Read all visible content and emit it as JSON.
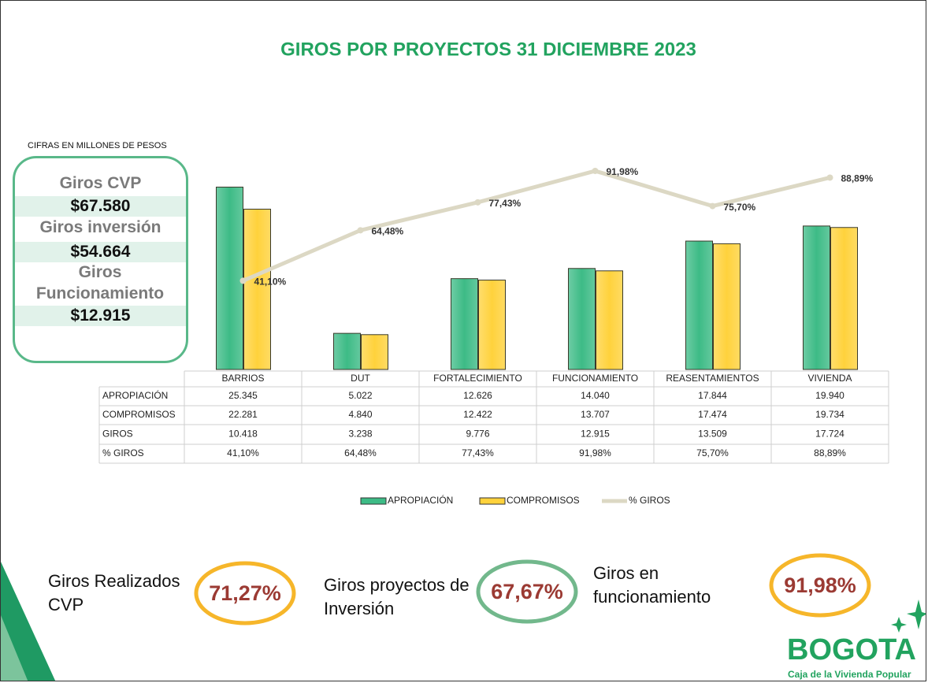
{
  "title": "GIROS POR PROYECTOS 31 DICIEMBRE 2023",
  "note": "CIFRAS EN MILLONES DE PESOS",
  "summary": [
    {
      "label": "Giros  CVP",
      "value": "$67.580"
    },
    {
      "label": "Giros inversión",
      "value": "$54.664"
    },
    {
      "label": "Giros Funcionamiento",
      "value": "$12.915"
    }
  ],
  "chart_data": {
    "type": "bar",
    "categories": [
      "BARRIOS",
      "DUT",
      "FORTALECIMIENTO",
      "FUNCIONAMIENTO",
      "REASENTAMIENTOS",
      "VIVIENDA"
    ],
    "ylim": [
      0,
      30000
    ],
    "y2lim": [
      0,
      100
    ],
    "series": [
      {
        "name": "APROPIACIÓN",
        "color": "#3dbb86",
        "values": [
          25345,
          5022,
          12626,
          14040,
          17844,
          19940
        ],
        "value_labels": [
          "25.345",
          "5.022",
          "12.626",
          "14.040",
          "17.844",
          "19.940"
        ]
      },
      {
        "name": "COMPROMISOS",
        "color": "#ffd23c",
        "values": [
          22281,
          4840,
          12422,
          13707,
          17474,
          19734
        ],
        "value_labels": [
          "22.281",
          "4.840",
          "12.422",
          "13.707",
          "17.474",
          "19.734"
        ]
      },
      {
        "name": "% GIROS",
        "type": "line",
        "axis": "y2",
        "color": "#dcd8c4",
        "values": [
          41.1,
          64.48,
          77.43,
          91.98,
          75.7,
          88.89
        ],
        "value_labels": [
          "41,10%",
          "64,48%",
          "77,43%",
          "91,98%",
          "75,70%",
          "88,89%"
        ]
      }
    ],
    "giros_row": {
      "name": "GIROS",
      "cells": [
        "10.418",
        "3.238",
        "9.776",
        "12.915",
        "13.509",
        "17.724"
      ]
    }
  },
  "indicators": [
    {
      "label": "Giros Realizados CVP",
      "value": "71,27%",
      "color": "#f6b62a"
    },
    {
      "label": "Giros proyectos de Inversión",
      "value": "67,67%",
      "color": "#72b88c"
    },
    {
      "label": "Giros en funcionamiento",
      "value": "91,98%",
      "color": "#f6b62a"
    }
  ],
  "logo": {
    "name": "BOGOTA",
    "subtitle": "Caja de la Vivienda Popular"
  }
}
